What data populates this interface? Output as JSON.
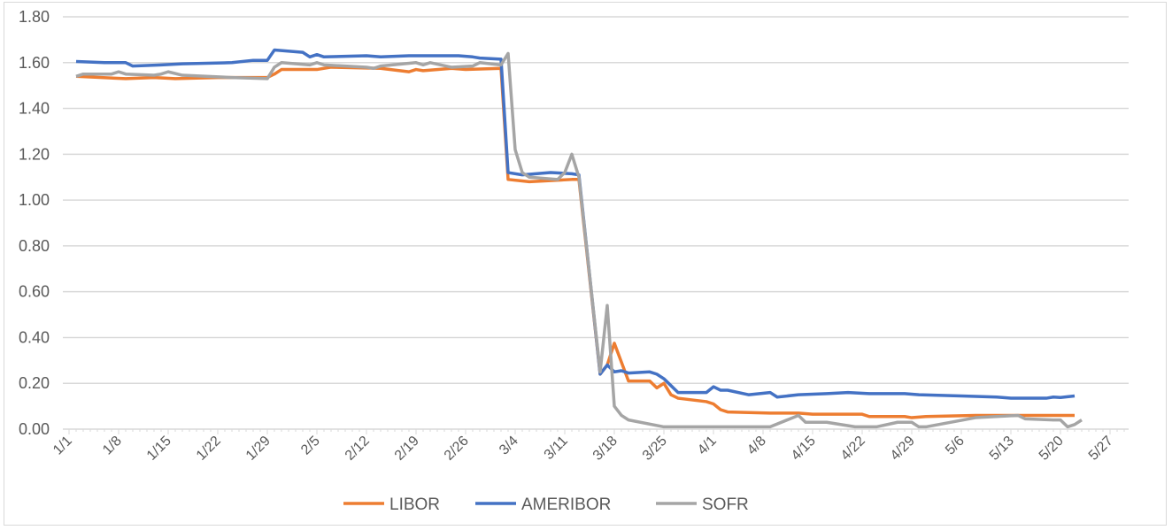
{
  "chart_data": {
    "type": "line",
    "title": "",
    "xlabel": "",
    "ylabel": "",
    "ylim": [
      0,
      1.8
    ],
    "yticks": [
      "0.00",
      "0.20",
      "0.40",
      "0.60",
      "0.80",
      "1.00",
      "1.20",
      "1.40",
      "1.60",
      "1.80"
    ],
    "xticks": [
      "1/1",
      "1/8",
      "1/15",
      "1/22",
      "1/29",
      "2/5",
      "2/12",
      "2/19",
      "2/26",
      "3/4",
      "3/11",
      "3/18",
      "3/25",
      "4/1",
      "4/8",
      "4/15",
      "4/22",
      "4/29",
      "5/6",
      "5/13",
      "5/20",
      "5/27"
    ],
    "grid": "horizontal",
    "legend_position": "bottom",
    "series": [
      {
        "name": "LIBOR",
        "color": "#ED7D31",
        "points": [
          [
            "1/2",
            1.54
          ],
          [
            "1/9",
            1.53
          ],
          [
            "1/13",
            1.535
          ],
          [
            "1/16",
            1.53
          ],
          [
            "1/22",
            1.535
          ],
          [
            "1/29",
            1.535
          ],
          [
            "1/30",
            1.55
          ],
          [
            "1/31",
            1.57
          ],
          [
            "2/5",
            1.57
          ],
          [
            "2/7",
            1.58
          ],
          [
            "2/14",
            1.575
          ],
          [
            "2/18",
            1.56
          ],
          [
            "2/19",
            1.57
          ],
          [
            "2/20",
            1.565
          ],
          [
            "2/24",
            1.575
          ],
          [
            "2/26",
            1.57
          ],
          [
            "3/2",
            1.575
          ],
          [
            "3/3",
            1.09
          ],
          [
            "3/6",
            1.08
          ],
          [
            "3/12",
            1.09
          ],
          [
            "3/13",
            1.09
          ],
          [
            "3/16",
            0.24
          ],
          [
            "3/17",
            0.28
          ],
          [
            "3/18",
            0.375
          ],
          [
            "3/20",
            0.21
          ],
          [
            "3/23",
            0.21
          ],
          [
            "3/24",
            0.18
          ],
          [
            "3/25",
            0.2
          ],
          [
            "3/26",
            0.15
          ],
          [
            "3/27",
            0.135
          ],
          [
            "3/31",
            0.12
          ],
          [
            "4/1",
            0.11
          ],
          [
            "4/2",
            0.085
          ],
          [
            "4/3",
            0.075
          ],
          [
            "4/9",
            0.07
          ],
          [
            "4/13",
            0.07
          ],
          [
            "4/15",
            0.065
          ],
          [
            "4/17",
            0.065
          ],
          [
            "4/22",
            0.065
          ],
          [
            "4/23",
            0.055
          ],
          [
            "4/28",
            0.055
          ],
          [
            "4/29",
            0.05
          ],
          [
            "5/1",
            0.055
          ],
          [
            "5/8",
            0.06
          ],
          [
            "5/22",
            0.06
          ]
        ]
      },
      {
        "name": "AMERIBOR",
        "color": "#4472C4",
        "points": [
          [
            "1/2",
            1.605
          ],
          [
            "1/6",
            1.6
          ],
          [
            "1/9",
            1.6
          ],
          [
            "1/10",
            1.585
          ],
          [
            "1/14",
            1.59
          ],
          [
            "1/17",
            1.595
          ],
          [
            "1/24",
            1.6
          ],
          [
            "1/27",
            1.61
          ],
          [
            "1/29",
            1.61
          ],
          [
            "1/30",
            1.655
          ],
          [
            "2/3",
            1.645
          ],
          [
            "2/4",
            1.625
          ],
          [
            "2/5",
            1.635
          ],
          [
            "2/6",
            1.625
          ],
          [
            "2/12",
            1.63
          ],
          [
            "2/14",
            1.625
          ],
          [
            "2/18",
            1.63
          ],
          [
            "2/25",
            1.63
          ],
          [
            "2/27",
            1.625
          ],
          [
            "2/28",
            1.62
          ],
          [
            "3/2",
            1.615
          ],
          [
            "3/3",
            1.12
          ],
          [
            "3/5",
            1.11
          ],
          [
            "3/9",
            1.12
          ],
          [
            "3/12",
            1.115
          ],
          [
            "3/13",
            1.11
          ],
          [
            "3/16",
            0.24
          ],
          [
            "3/17",
            0.28
          ],
          [
            "3/18",
            0.25
          ],
          [
            "3/19",
            0.255
          ],
          [
            "3/20",
            0.245
          ],
          [
            "3/23",
            0.25
          ],
          [
            "3/24",
            0.24
          ],
          [
            "3/25",
            0.22
          ],
          [
            "3/26",
            0.19
          ],
          [
            "3/27",
            0.16
          ],
          [
            "3/31",
            0.16
          ],
          [
            "4/1",
            0.185
          ],
          [
            "4/2",
            0.17
          ],
          [
            "4/3",
            0.17
          ],
          [
            "4/6",
            0.15
          ],
          [
            "4/9",
            0.16
          ],
          [
            "4/10",
            0.14
          ],
          [
            "4/13",
            0.15
          ],
          [
            "4/17",
            0.155
          ],
          [
            "4/20",
            0.16
          ],
          [
            "4/23",
            0.155
          ],
          [
            "4/28",
            0.155
          ],
          [
            "4/30",
            0.15
          ],
          [
            "5/6",
            0.145
          ],
          [
            "5/11",
            0.14
          ],
          [
            "5/13",
            0.135
          ],
          [
            "5/18",
            0.135
          ],
          [
            "5/19",
            0.14
          ],
          [
            "5/20",
            0.138
          ],
          [
            "5/22",
            0.145
          ]
        ]
      },
      {
        "name": "SOFR",
        "color": "#A5A5A5",
        "points": [
          [
            "1/2",
            1.54
          ],
          [
            "1/3",
            1.55
          ],
          [
            "1/7",
            1.55
          ],
          [
            "1/8",
            1.56
          ],
          [
            "1/9",
            1.55
          ],
          [
            "1/13",
            1.545
          ],
          [
            "1/14",
            1.55
          ],
          [
            "1/15",
            1.56
          ],
          [
            "1/17",
            1.545
          ],
          [
            "1/24",
            1.535
          ],
          [
            "1/29",
            1.53
          ],
          [
            "1/30",
            1.58
          ],
          [
            "1/31",
            1.6
          ],
          [
            "2/4",
            1.59
          ],
          [
            "2/5",
            1.6
          ],
          [
            "2/6",
            1.59
          ],
          [
            "2/12",
            1.58
          ],
          [
            "2/13",
            1.575
          ],
          [
            "2/14",
            1.585
          ],
          [
            "2/19",
            1.6
          ],
          [
            "2/20",
            1.59
          ],
          [
            "2/21",
            1.6
          ],
          [
            "2/24",
            1.58
          ],
          [
            "2/27",
            1.585
          ],
          [
            "2/28",
            1.6
          ],
          [
            "3/2",
            1.59
          ],
          [
            "3/3",
            1.64
          ],
          [
            "3/4",
            1.22
          ],
          [
            "3/5",
            1.12
          ],
          [
            "3/6",
            1.1
          ],
          [
            "3/10",
            1.09
          ],
          [
            "3/11",
            1.12
          ],
          [
            "3/12",
            1.2
          ],
          [
            "3/13",
            1.1
          ],
          [
            "3/16",
            0.25
          ],
          [
            "3/17",
            0.54
          ],
          [
            "3/18",
            0.1
          ],
          [
            "3/19",
            0.06
          ],
          [
            "3/20",
            0.04
          ],
          [
            "3/25",
            0.01
          ],
          [
            "4/9",
            0.01
          ],
          [
            "4/13",
            0.06
          ],
          [
            "4/14",
            0.03
          ],
          [
            "4/17",
            0.03
          ],
          [
            "4/21",
            0.01
          ],
          [
            "4/24",
            0.01
          ],
          [
            "4/27",
            0.03
          ],
          [
            "4/29",
            0.03
          ],
          [
            "4/30",
            0.01
          ],
          [
            "5/1",
            0.01
          ],
          [
            "5/8",
            0.05
          ],
          [
            "5/14",
            0.06
          ],
          [
            "5/15",
            0.045
          ],
          [
            "5/19",
            0.04
          ],
          [
            "5/20",
            0.04
          ],
          [
            "5/21",
            0.01
          ],
          [
            "5/22",
            0.02
          ],
          [
            "5/23",
            0.04
          ]
        ]
      }
    ]
  }
}
